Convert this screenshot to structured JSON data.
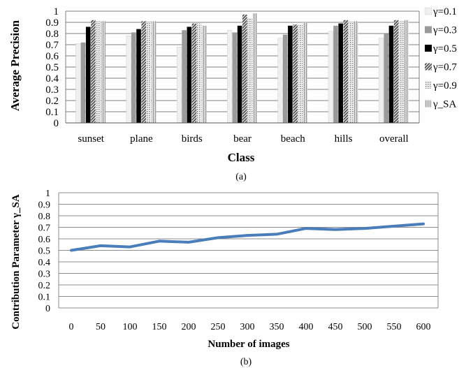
{
  "chart_data": [
    {
      "type": "bar",
      "caption": "(a)",
      "xlabel": "Class",
      "ylabel": "Average Precision",
      "ylim": [
        0,
        1
      ],
      "yticks": [
        "0",
        "0.1",
        "0.2",
        "0.3",
        "0.4",
        "0.5",
        "0.6",
        "0.7",
        "0.8",
        "0.9",
        "1"
      ],
      "grid": true,
      "legend_position": "right",
      "categories": [
        "sunset",
        "plane",
        "birds",
        "bear",
        "beach",
        "hills",
        "overall"
      ],
      "series": [
        {
          "name": "γ=0.1",
          "color": "#efefef",
          "pattern": "solid-light",
          "values": [
            0.71,
            0.78,
            0.68,
            0.83,
            0.76,
            0.82,
            0.76
          ]
        },
        {
          "name": "γ=0.3",
          "color": "#9a9a9a",
          "pattern": "solid-gray",
          "values": [
            0.72,
            0.81,
            0.83,
            0.81,
            0.79,
            0.87,
            0.8
          ]
        },
        {
          "name": "γ=0.5",
          "color": "#000000",
          "pattern": "solid-black",
          "values": [
            0.86,
            0.84,
            0.86,
            0.87,
            0.87,
            0.89,
            0.87
          ]
        },
        {
          "name": "γ=0.7",
          "color": "#6a6a6a",
          "pattern": "diagonal",
          "values": [
            0.92,
            0.91,
            0.89,
            0.97,
            0.88,
            0.92,
            0.92
          ]
        },
        {
          "name": "γ=0.9",
          "color": "#8a8a8a",
          "pattern": "dotted",
          "values": [
            0.91,
            0.9,
            0.89,
            0.94,
            0.88,
            0.9,
            0.91
          ]
        },
        {
          "name": "γ_SA",
          "color": "#bdbdbd",
          "pattern": "vertical",
          "values": [
            0.91,
            0.91,
            0.87,
            0.98,
            0.9,
            0.91,
            0.92
          ]
        }
      ]
    },
    {
      "type": "line",
      "caption": "(b)",
      "xlabel": "Number of images",
      "ylabel": "Contribution Parameter γ_SA",
      "ylim": [
        0,
        1
      ],
      "yticks": [
        "0",
        "0.1",
        "0.2",
        "0.3",
        "0.4",
        "0.5",
        "0.6",
        "0.7",
        "0.8",
        "0.9",
        "1"
      ],
      "grid": true,
      "x": [
        0,
        50,
        100,
        150,
        200,
        250,
        300,
        350,
        400,
        450,
        500,
        550,
        600
      ],
      "series": [
        {
          "color": "#4a7ebb",
          "values": [
            0.5,
            0.54,
            0.53,
            0.58,
            0.57,
            0.61,
            0.63,
            0.64,
            0.69,
            0.68,
            0.69,
            0.71,
            0.73
          ]
        }
      ]
    }
  ]
}
